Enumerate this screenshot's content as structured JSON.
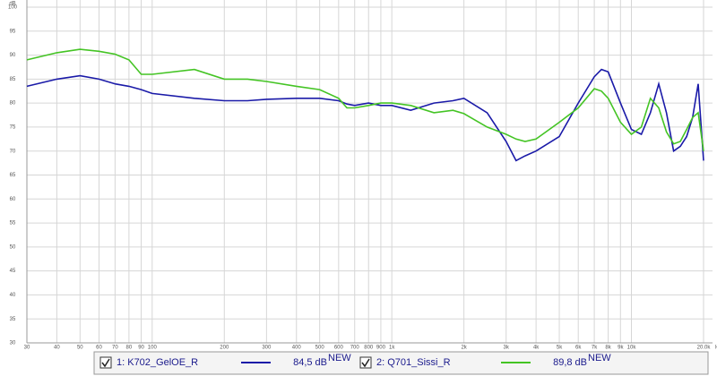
{
  "chart_data": {
    "type": "line",
    "y_unit": "dB",
    "x_unit": "Hz",
    "log_x": true,
    "grid": true,
    "xlim": [
      30,
      20000
    ],
    "ylim": [
      30,
      100
    ],
    "yticks": [
      30,
      35,
      40,
      45,
      50,
      55,
      60,
      65,
      70,
      75,
      80,
      85,
      90,
      95,
      100
    ],
    "xticks": [
      30,
      40,
      50,
      60,
      70,
      80,
      90,
      100,
      200,
      300,
      400,
      500,
      600,
      700,
      800,
      900,
      {
        "value": 1000,
        "label": "1k"
      },
      {
        "value": 2000,
        "label": "2k"
      },
      {
        "value": 3000,
        "label": "3k"
      },
      {
        "value": 4000,
        "label": "4k"
      },
      {
        "value": 5000,
        "label": "5k"
      },
      {
        "value": 6000,
        "label": "6k"
      },
      {
        "value": 7000,
        "label": "7k"
      },
      {
        "value": 8000,
        "label": "8k"
      },
      {
        "value": 9000,
        "label": "9k"
      },
      {
        "value": 10000,
        "label": "10k"
      },
      {
        "value": 20000,
        "label": "20.0k"
      }
    ],
    "x": [
      30,
      40,
      50,
      60,
      70,
      80,
      90,
      100,
      150,
      200,
      250,
      300,
      400,
      500,
      600,
      650,
      700,
      800,
      900,
      1000,
      1200,
      1500,
      1800,
      2000,
      2500,
      3000,
      3300,
      3600,
      4000,
      5000,
      6000,
      7000,
      7500,
      8000,
      9000,
      10000,
      11000,
      12000,
      13000,
      14000,
      15000,
      16000,
      17000,
      18000,
      19000,
      20000
    ],
    "series": [
      {
        "name": "1: K702_GelOE_R",
        "color": "#1a1aa8",
        "level": "84,5 dB",
        "level_tag": "NEW",
        "values": [
          83.5,
          85,
          85.7,
          85,
          84,
          83.5,
          82.8,
          82,
          81,
          80.5,
          80.5,
          80.8,
          81,
          81,
          80.5,
          79.8,
          79.5,
          80,
          79.5,
          79.5,
          78.5,
          80,
          80.5,
          81,
          78,
          72,
          68,
          69,
          70,
          73,
          80,
          85.5,
          87,
          86.5,
          80,
          74.5,
          73.5,
          78,
          84,
          78,
          70,
          71,
          73,
          77,
          84,
          68
        ]
      },
      {
        "name": "2: Q701_Sissi_R",
        "color": "#44c424",
        "level": "89,8 dB",
        "level_tag": "NEW",
        "values": [
          89,
          90.5,
          91.2,
          90.8,
          90.2,
          89,
          86,
          86,
          87,
          85,
          85,
          84.5,
          83.5,
          82.8,
          81,
          79,
          79,
          79.5,
          80,
          80,
          79.5,
          78,
          78.5,
          77.8,
          75,
          73.5,
          72.5,
          72,
          72.5,
          76,
          79,
          83,
          82.5,
          81,
          76,
          73.5,
          75,
          81,
          79,
          74,
          71.5,
          72,
          74.5,
          77,
          78,
          70
        ]
      }
    ]
  }
}
